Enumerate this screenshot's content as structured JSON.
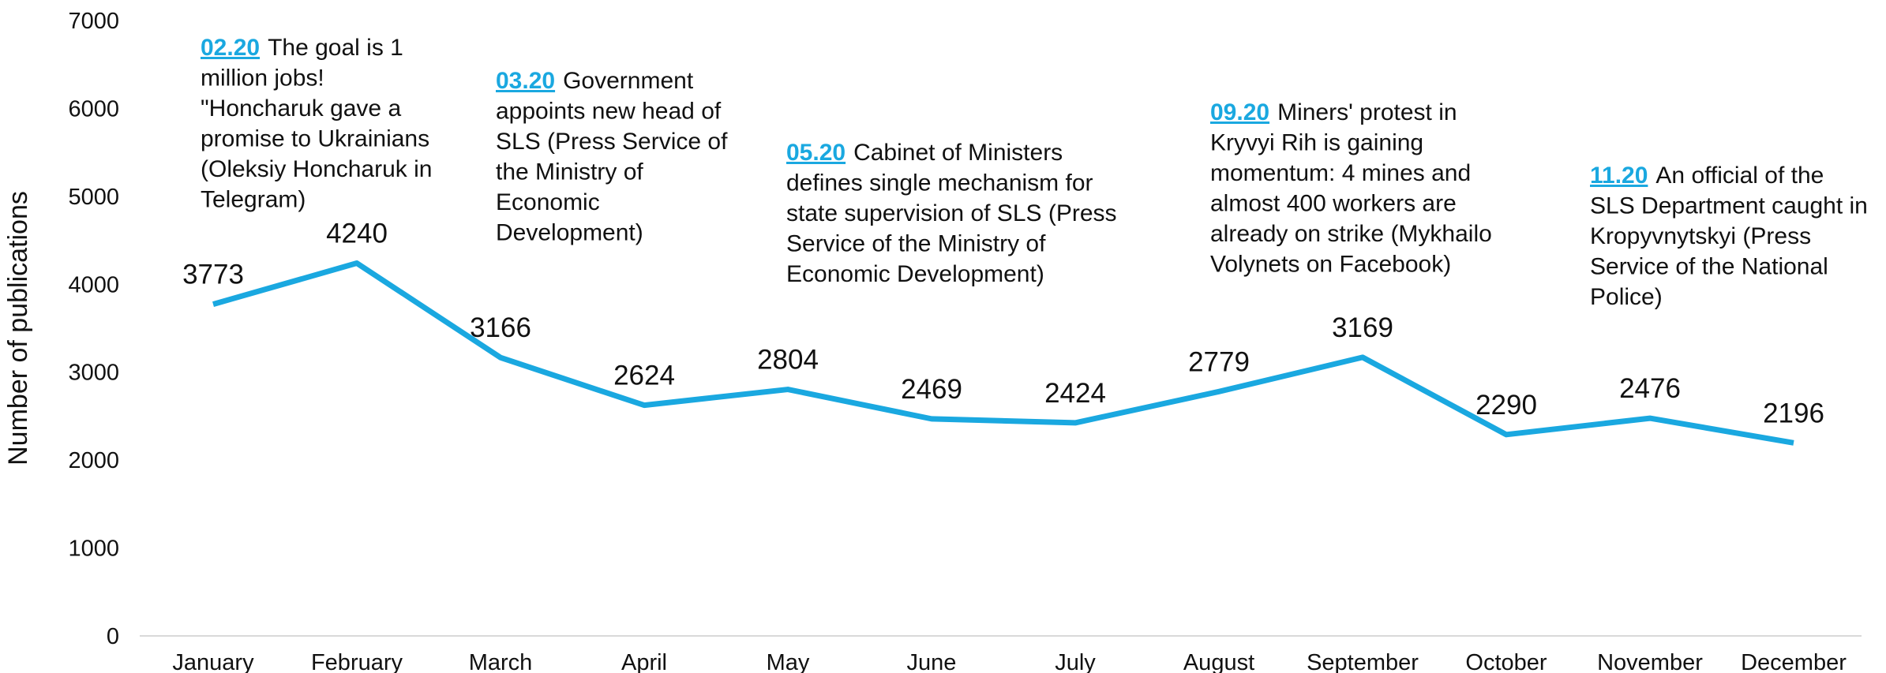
{
  "chart_data": {
    "type": "line",
    "ylabel": "Number of publications",
    "categories": [
      "January",
      "February",
      "March",
      "April",
      "May",
      "June",
      "July",
      "August",
      "September",
      "October",
      "November",
      "December"
    ],
    "series": [
      {
        "name": "Number of publications",
        "color": "#1aa8e0",
        "values": [
          3773,
          4240,
          3166,
          2624,
          2804,
          2469,
          2424,
          2779,
          3169,
          2290,
          2476,
          2196
        ]
      }
    ],
    "ylim": [
      0,
      7000
    ],
    "yticks": [
      0,
      1000,
      2000,
      3000,
      4000,
      5000,
      6000,
      7000
    ],
    "annotations": [
      {
        "date": "02.20",
        "lines": [
          "The goal is 1",
          "million jobs!",
          "\"Honcharuk gave a",
          "promise to Ukrainians",
          "(Oleksiy Honcharuk in",
          "Telegram)"
        ]
      },
      {
        "date": "03.20",
        "lines": [
          "Government",
          "appoints new head of",
          "SLS (Press Service of",
          "the Ministry of",
          "Economic",
          "Development)"
        ]
      },
      {
        "date": "05.20",
        "lines": [
          "Cabinet of Ministers",
          "defines single mechanism for",
          "state supervision of SLS (Press",
          "Service of the Ministry of",
          "Economic Development)"
        ]
      },
      {
        "date": "09.20",
        "lines": [
          "Miners' protest in",
          "Kryvyi Rih is gaining",
          "momentum: 4 mines and",
          "almost 400 workers are",
          "already on strike (Mykhailo",
          "Volynets on Facebook)"
        ]
      },
      {
        "date": "11.20",
        "lines": [
          "An official of the",
          "SLS Department caught in",
          "Kropyvnytskyi (Press",
          "Service of the National",
          "Police)"
        ]
      }
    ]
  }
}
